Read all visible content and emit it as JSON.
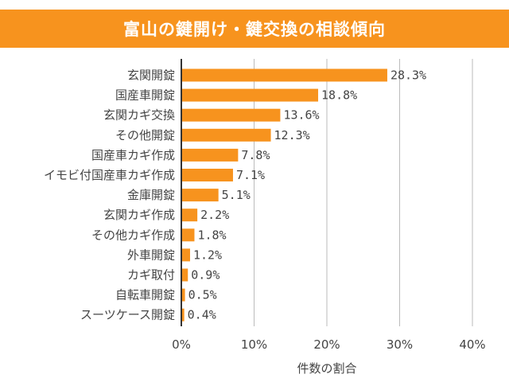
{
  "chart_data": {
    "type": "bar",
    "orientation": "horizontal",
    "title": "富山の鍵開け・鍵交換の相談傾向",
    "xlabel": "件数の割合",
    "ylabel": "",
    "xlim": [
      0,
      40
    ],
    "x_ticks": [
      "0%",
      "10%",
      "20%",
      "30%",
      "40%"
    ],
    "x_tick_values": [
      0,
      10,
      20,
      30,
      40
    ],
    "grid": "vertical",
    "legend": "none",
    "categories": [
      "玄関開錠",
      "国産車開錠",
      "玄関カギ交換",
      "その他開錠",
      "国産車カギ作成",
      "イモビ付国産車カギ作成",
      "金庫開錠",
      "玄関カギ作成",
      "その他カギ作成",
      "外車開錠",
      "カギ取付",
      "自転車開錠",
      "スーツケース開錠"
    ],
    "values": [
      28.3,
      18.8,
      13.6,
      12.3,
      7.8,
      7.1,
      5.1,
      2.2,
      1.8,
      1.2,
      0.9,
      0.5,
      0.4
    ],
    "value_labels": [
      "28.3%",
      "18.8%",
      "13.6%",
      "12.3%",
      "7.8%",
      "7.1%",
      "5.1%",
      "2.2%",
      "1.8%",
      "1.2%",
      "0.9%",
      "0.5%",
      "0.4%"
    ]
  },
  "colors": {
    "bar": "#f7931e",
    "title_band": "#f7931e",
    "title_text": "#ffffff",
    "axis": "#333333",
    "grid": "#bbbbbb",
    "text": "#444444"
  }
}
